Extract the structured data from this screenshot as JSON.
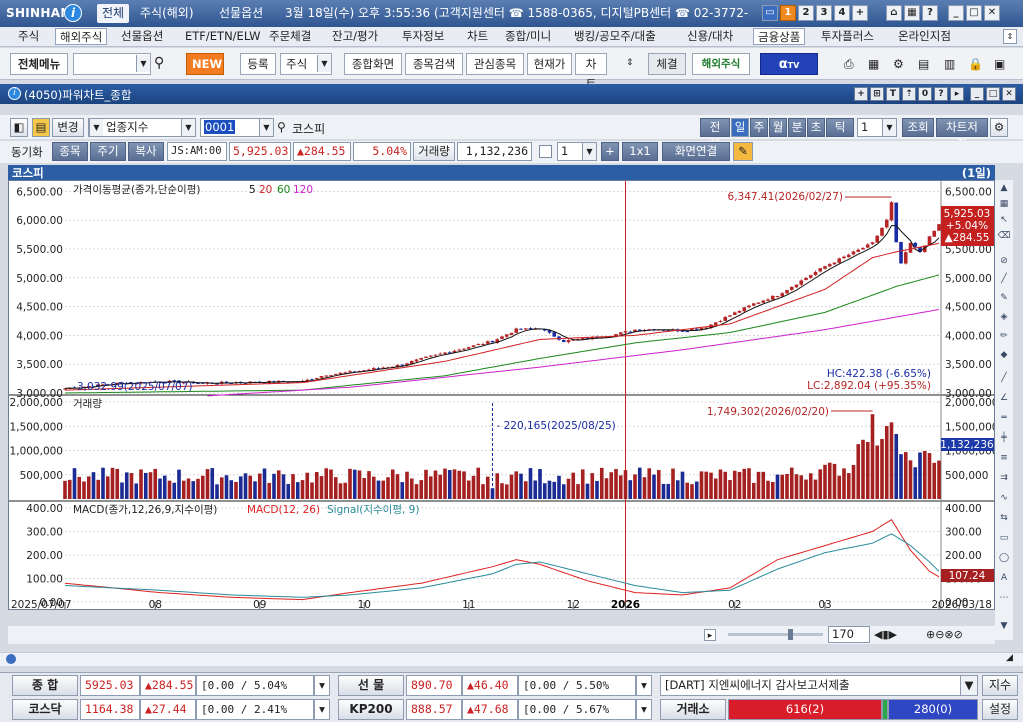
{
  "titlebar": {
    "brand": "SHINHAN",
    "tabs": [
      "전체",
      "주식(해외)",
      "선물옵션"
    ],
    "info": "3월 18일(수) 오후 3:55:36 (고객지원센터 ☎ 1588-0365, 디지털PB센터 ☎ 02-3772-",
    "num_buttons": [
      "1",
      "2",
      "3",
      "4",
      "+"
    ]
  },
  "menubar": {
    "items": [
      "주식",
      "해외주식",
      "선물옵션",
      "ETF/ETN/ELW",
      "주문체결",
      "잔고/평가",
      "투자정보",
      "차트",
      "종합/미니",
      "뱅킹/공모주/대출",
      "신용/대차",
      "금융상품",
      "투자플러스",
      "온라인지점"
    ]
  },
  "toolbar": {
    "all_menu": "전체메뉴",
    "new": "NEW",
    "register": "등록",
    "stock": "주식",
    "buttons": [
      "종합화면",
      "종목검색",
      "관심종목",
      "현재가",
      "차트"
    ],
    "contract": "체결",
    "overseas": "해외주식",
    "tv": "TV"
  },
  "window": {
    "title": "(4050)파워차트_종합"
  },
  "controls": {
    "change": "변경",
    "category": "업종지수",
    "code": "0001",
    "name": "코스피",
    "periods": [
      "전체",
      "일",
      "주",
      "월",
      "분",
      "초",
      "틱"
    ],
    "period_count": "1",
    "lookup": "조회",
    "save": "차트저장",
    "sync": "동기화",
    "sync_buttons": [
      "종목",
      "주기",
      "복사"
    ],
    "ticker": "JS:AM:00",
    "price": "5,925.03",
    "change_amt": "▲284.55",
    "change_pct": "5.04%",
    "volume_label": "거래량",
    "volume": "1,132,236",
    "layout_count": "1",
    "layout": "1x1",
    "link": "화면연결"
  },
  "chart_header": {
    "name": "코스피",
    "period": "(1일)"
  },
  "chart_labels": {
    "ma_title": "가격이동평균(종가,단순이평)",
    "ma_periods": [
      "5",
      "20",
      "60",
      "120"
    ],
    "vol_title": "거래량",
    "macd_title": "MACD(종가,12,26,9,지수이평)",
    "macd_name": "MACD(12, 26)",
    "signal_name": "Signal(지수이평, 9)",
    "high_label": "6,347.41(2026/02/27)",
    "low_label": "3,032.99(2025/07/07)",
    "vol_high_label": "1,749,302(2026/02/20)",
    "vol_low_label": "220,165(2025/08/25)",
    "hc": "HC:422.38 (-6.65%)",
    "lc": "LC:2,892.04 (+95.35%)",
    "last_price": "5,925.03",
    "last_pct": "+5.04%",
    "last_chg": "▲284.55",
    "last_volume": "1,132,236",
    "last_macd": "107.24",
    "date_start": "2025/07/07",
    "date_end": "2026/03/18",
    "year_label": "2026",
    "zoom": "170"
  },
  "colors": {
    "up": "#b52525",
    "down": "#1a2ca3",
    "ma5": "#111111",
    "ma20": "#d22020",
    "ma60": "#1a8a1a",
    "ma120": "#d020d0",
    "macd": "#e02020",
    "signal": "#2a8a9a"
  },
  "chart_data": [
    {
      "type": "candlestick",
      "title": "가격이동평균(종가,단순이평)",
      "ylim": [
        3000,
        6500
      ],
      "yticks": [
        "3,000.00",
        "3,500.00",
        "4,000.00",
        "4,500.00",
        "5,000.00",
        "5,500.00",
        "6,000.00",
        "6,500.00"
      ],
      "xticks": [
        "2025/07/07",
        "08",
        "09",
        "10",
        "11",
        "12",
        "2026",
        "02",
        "03",
        "2026/03/18"
      ],
      "close_path": [
        [
          0,
          3080
        ],
        [
          10,
          3160
        ],
        [
          20,
          3200
        ],
        [
          30,
          3170
        ],
        [
          40,
          3190
        ],
        [
          50,
          3200
        ],
        [
          55,
          3320
        ],
        [
          60,
          3360
        ],
        [
          70,
          3480
        ],
        [
          80,
          3700
        ],
        [
          90,
          3900
        ],
        [
          95,
          4100
        ],
        [
          100,
          4120
        ],
        [
          105,
          3900
        ],
        [
          110,
          3950
        ],
        [
          115,
          4000
        ],
        [
          120,
          4100
        ],
        [
          125,
          4110
        ],
        [
          130,
          4080
        ],
        [
          135,
          4150
        ],
        [
          140,
          4350
        ],
        [
          145,
          4550
        ],
        [
          150,
          4700
        ],
        [
          155,
          4950
        ],
        [
          160,
          5200
        ],
        [
          165,
          5400
        ],
        [
          170,
          5600
        ],
        [
          173,
          6000
        ],
        [
          174,
          6300
        ],
        [
          175,
          5600
        ],
        [
          176,
          5250
        ],
        [
          178,
          5600
        ],
        [
          180,
          5450
        ],
        [
          182,
          5700
        ],
        [
          184,
          5925
        ]
      ],
      "ma_series": [
        {
          "name": "20",
          "values": [
            [
              0,
              3050
            ],
            [
              50,
              3180
            ],
            [
              80,
              3550
            ],
            [
              100,
              3930
            ],
            [
              120,
              4000
            ],
            [
              140,
              4200
            ],
            [
              160,
              4800
            ],
            [
              170,
              5350
            ],
            [
              175,
              5450
            ],
            [
              184,
              5600
            ]
          ]
        },
        {
          "name": "60",
          "values": [
            [
              0,
              3000
            ],
            [
              50,
              3050
            ],
            [
              80,
              3300
            ],
            [
              100,
              3600
            ],
            [
              120,
              3870
            ],
            [
              140,
              4050
            ],
            [
              160,
              4400
            ],
            [
              175,
              4850
            ],
            [
              184,
              5050
            ]
          ]
        },
        {
          "name": "120",
          "values": [
            [
              30,
              2950
            ],
            [
              60,
              3100
            ],
            [
              100,
              3450
            ],
            [
              130,
              3750
            ],
            [
              160,
              4100
            ],
            [
              184,
              4450
            ]
          ]
        }
      ]
    },
    {
      "type": "bar",
      "title": "거래량",
      "ylim": [
        0,
        2000000
      ],
      "yticks": [
        "500,000",
        "1,000,000",
        "1,500,000",
        "2,000,000"
      ],
      "note": "approximately 185 daily bars, mostly 300k-600k; peaks near 1,749,302 on 2026/02/20"
    },
    {
      "type": "line",
      "title": "MACD(종가,12,26,9,지수이평)",
      "ylim": [
        0,
        400
      ],
      "yticks": [
        "0.00",
        "100.00",
        "200.00",
        "300.00",
        "400.00"
      ],
      "series": [
        {
          "name": "MACD(12, 26)",
          "values": [
            [
              0,
              80
            ],
            [
              20,
              40
            ],
            [
              35,
              20
            ],
            [
              50,
              10
            ],
            [
              60,
              40
            ],
            [
              75,
              80
            ],
            [
              90,
              150
            ],
            [
              95,
              180
            ],
            [
              100,
              160
            ],
            [
              110,
              90
            ],
            [
              120,
              40
            ],
            [
              130,
              30
            ],
            [
              140,
              60
            ],
            [
              150,
              180
            ],
            [
              160,
              240
            ],
            [
              170,
              300
            ],
            [
              174,
              350
            ],
            [
              178,
              220
            ],
            [
              182,
              130
            ],
            [
              184,
              107
            ]
          ]
        },
        {
          "name": "Signal(지수이평, 9)",
          "values": [
            [
              0,
              70
            ],
            [
              20,
              50
            ],
            [
              35,
              30
            ],
            [
              50,
              20
            ],
            [
              60,
              30
            ],
            [
              75,
              60
            ],
            [
              90,
              120
            ],
            [
              95,
              160
            ],
            [
              100,
              170
            ],
            [
              110,
              120
            ],
            [
              120,
              70
            ],
            [
              130,
              40
            ],
            [
              140,
              50
            ],
            [
              150,
              140
            ],
            [
              160,
              210
            ],
            [
              170,
              250
            ],
            [
              174,
              290
            ],
            [
              178,
              240
            ],
            [
              182,
              170
            ],
            [
              184,
              130
            ]
          ]
        }
      ]
    }
  ],
  "status": {
    "row1": [
      {
        "label": "종  합",
        "value": "5925.03",
        "chg": "▲284.55",
        "pct": "[0.00 / 5.04%"
      },
      {
        "label": "선  물",
        "value": "890.70",
        "chg": "▲46.40",
        "pct": "[0.00 / 5.50%"
      }
    ],
    "row2": [
      {
        "label": "코스닥",
        "value": "1164.38",
        "chg": "▲27.44",
        "pct": "[0.00 / 2.41%"
      },
      {
        "label": "KP200",
        "value": "888.57",
        "chg": "▲47.68",
        "pct": "[0.00 / 5.67%"
      }
    ],
    "news": "[DART] 지엔씨에너지 감사보고서제출",
    "news_btn": "지수",
    "exchange_label": "거래소",
    "exchange_up": "616(2)",
    "exchange_down": "280(0)",
    "settings": "설정"
  }
}
